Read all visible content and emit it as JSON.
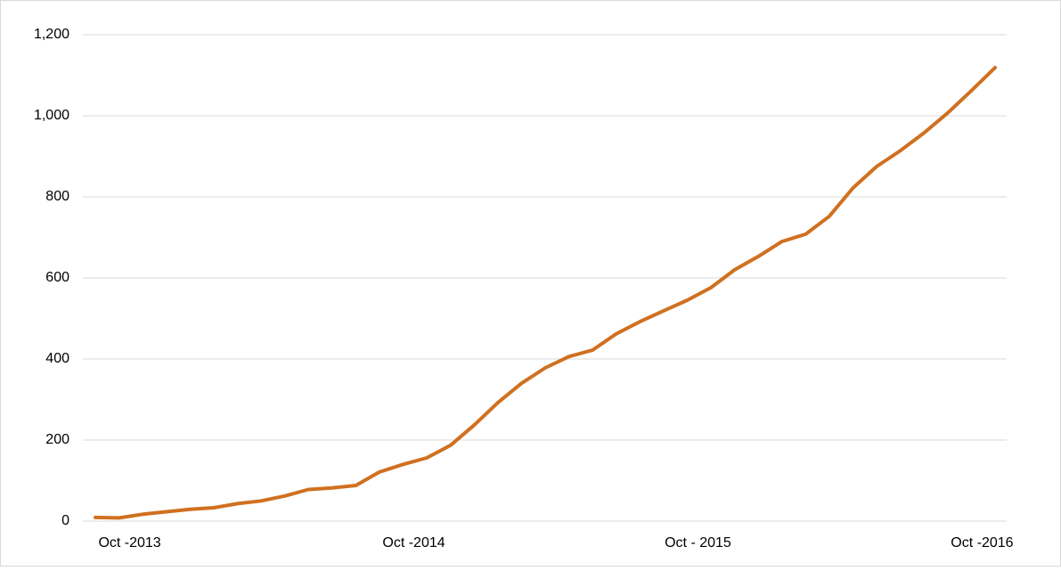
{
  "chart_data": {
    "type": "line",
    "categories": [
      null,
      "Oct -2013",
      null,
      null,
      null,
      null,
      null,
      null,
      null,
      null,
      null,
      null,
      null,
      "Oct -2014",
      null,
      null,
      null,
      null,
      null,
      null,
      null,
      null,
      null,
      null,
      null,
      "Oct - 2015",
      null,
      null,
      null,
      null,
      null,
      null,
      null,
      null,
      null,
      null,
      null,
      "Oct -2016",
      null
    ],
    "series": [
      {
        "color": "#d07020",
        "values": [
          9,
          8,
          17,
          23,
          29,
          33,
          43,
          50,
          62,
          78,
          82,
          88,
          121,
          140,
          156,
          187,
          237,
          292,
          340,
          378,
          406,
          422,
          462,
          492,
          519,
          545,
          576,
          620,
          653,
          690,
          708,
          752,
          822,
          875,
          914,
          958,
          1007,
          1062,
          1119
        ]
      }
    ],
    "ylim": [
      0,
      1200
    ],
    "yticks": [
      0,
      200,
      400,
      600,
      800,
      {
        "value": 1000,
        "label": "1,000"
      },
      {
        "value": 1200,
        "label": "1,200"
      }
    ],
    "grid": true
  }
}
